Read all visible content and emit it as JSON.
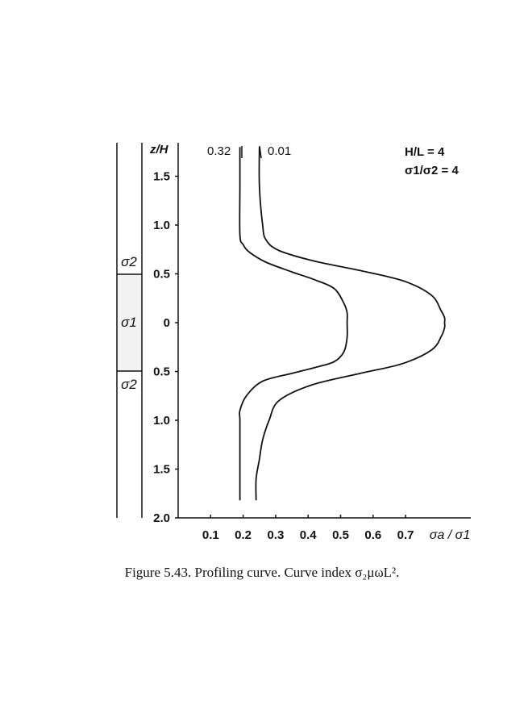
{
  "chart_data": {
    "type": "line",
    "title": "",
    "ylabel": "z/H",
    "xlabel": "σa / σ1",
    "xlim": [
      0.0,
      0.9
    ],
    "ylim": [
      2.0,
      -1.9
    ],
    "x_ticks": [
      0.1,
      0.2,
      0.3,
      0.4,
      0.5,
      0.6,
      0.7
    ],
    "x_tick_labels": [
      "0.1",
      "0.2",
      "0.3",
      "0.4",
      "0.5",
      "0.6",
      "0.7"
    ],
    "y_ticks": [
      -1.5,
      -1.0,
      -0.5,
      0,
      0.5,
      1.0,
      1.5,
      2.0
    ],
    "y_tick_labels": [
      "1.5",
      "1.0",
      "0.5",
      "0",
      "0.5",
      "1.0",
      "1.5",
      "2.0"
    ],
    "params": {
      "hl": "H/L = 4",
      "ratio": "σ1/σ2 = 4"
    },
    "series": [
      {
        "name": "0.32",
        "x": [
          0.19,
          0.19,
          0.19,
          0.2,
          0.22,
          0.27,
          0.35,
          0.42,
          0.48,
          0.51,
          0.52,
          0.52,
          0.52,
          0.51,
          0.48,
          0.42,
          0.35,
          0.26,
          0.21,
          0.19,
          0.19,
          0.19,
          0.19,
          0.19
        ],
        "z": [
          -1.8,
          -1.4,
          -0.9,
          -0.8,
          -0.72,
          -0.62,
          -0.52,
          -0.44,
          -0.35,
          -0.2,
          -0.1,
          0.0,
          0.15,
          0.3,
          0.4,
          0.46,
          0.52,
          0.6,
          0.75,
          0.9,
          1.0,
          1.3,
          1.6,
          1.82
        ]
      },
      {
        "name": "0.01",
        "x": [
          0.25,
          0.25,
          0.26,
          0.27,
          0.31,
          0.42,
          0.58,
          0.7,
          0.78,
          0.81,
          0.82,
          0.82,
          0.82,
          0.81,
          0.78,
          0.69,
          0.56,
          0.41,
          0.31,
          0.28,
          0.26,
          0.25,
          0.24,
          0.24
        ],
        "z": [
          -1.8,
          -1.4,
          -1.0,
          -0.85,
          -0.74,
          -0.63,
          -0.52,
          -0.42,
          -0.28,
          -0.12,
          -0.05,
          0.0,
          0.05,
          0.14,
          0.28,
          0.42,
          0.52,
          0.64,
          0.8,
          1.0,
          1.2,
          1.4,
          1.6,
          1.82
        ]
      }
    ],
    "layers": [
      {
        "label": "σ2",
        "z_top": -1.9,
        "z_bottom": -0.5
      },
      {
        "label": "σ1",
        "z_top": -0.5,
        "z_bottom": 0.5
      },
      {
        "label": "σ2",
        "z_top": 0.5,
        "z_bottom": 2.0
      }
    ]
  },
  "caption": "Figure 5.43.  Profiling curve.  Curve index σ₂μωL²."
}
